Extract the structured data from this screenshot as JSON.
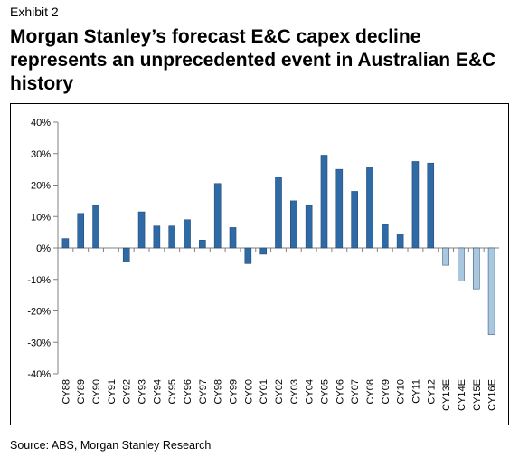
{
  "header": {
    "exhibit_label": "Exhibit 2",
    "title": "Morgan Stanley’s forecast E&C capex decline represents an unprecedented event in Australian E&C history"
  },
  "footer": {
    "source": "Source: ABS, Morgan Stanley Research"
  },
  "colors": {
    "actual_bar": "#2E6AA6",
    "forecast_bar": "#A9C8E0",
    "axis": "#808080"
  },
  "chart_data": {
    "type": "bar",
    "title": "",
    "xlabel": "",
    "ylabel": "",
    "ylim": [
      -40,
      40
    ],
    "yticks": [
      40,
      30,
      20,
      10,
      0,
      -10,
      -20,
      -30,
      -40
    ],
    "ytick_format": "percent",
    "grid": false,
    "legend": "none",
    "categories": [
      "CY88",
      "CY89",
      "CY90",
      "CY91",
      "CY92",
      "CY93",
      "CY94",
      "CY95",
      "CY96",
      "CY97",
      "CY98",
      "CY99",
      "CY00",
      "CY01",
      "CY02",
      "CY03",
      "CY04",
      "CY05",
      "CY06",
      "CY07",
      "CY08",
      "CY09",
      "CY10",
      "CY11",
      "CY12",
      "CY13E",
      "CY14E",
      "CY15E",
      "CY16E"
    ],
    "values": [
      3,
      11,
      13.5,
      0,
      -4.5,
      11.5,
      7,
      7,
      9,
      2.5,
      20.5,
      6.5,
      -5,
      -2,
      22.5,
      15,
      13.5,
      29.5,
      25,
      18,
      25.5,
      7.5,
      4.5,
      27.5,
      27,
      -5.5,
      -10.5,
      -13,
      -27.5
    ],
    "forecast": [
      false,
      false,
      false,
      false,
      false,
      false,
      false,
      false,
      false,
      false,
      false,
      false,
      false,
      false,
      false,
      false,
      false,
      false,
      false,
      false,
      false,
      false,
      false,
      false,
      false,
      true,
      true,
      true,
      true
    ]
  }
}
